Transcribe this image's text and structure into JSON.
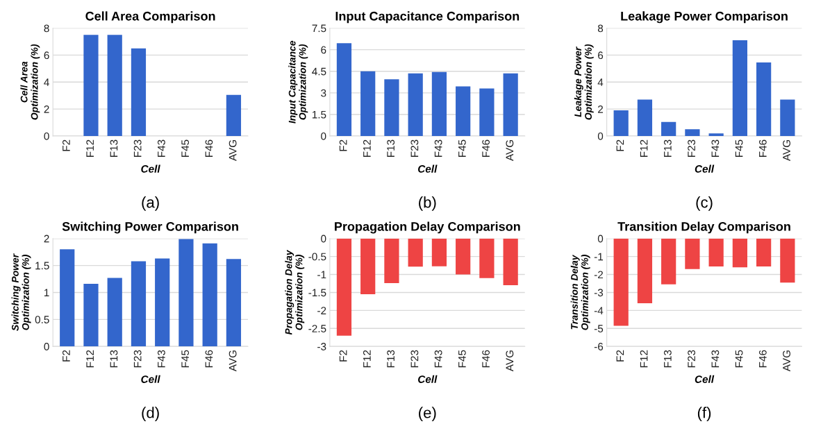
{
  "chart_data": [
    {
      "type": "bar",
      "title": "Cell Area Comparison",
      "xlabel": "Cell",
      "ylabel": "Cell Area\nOptimization (%)",
      "categories": [
        "F2",
        "F12",
        "F13",
        "F23",
        "F43",
        "F45",
        "F46",
        "AVG"
      ],
      "values": [
        0,
        7.5,
        7.5,
        6.5,
        0,
        0,
        0,
        3.05
      ],
      "color": "#3366cc",
      "ylim": [
        0,
        8
      ],
      "yticks": [
        0,
        2,
        4,
        6,
        8
      ],
      "grid": "y",
      "annotations": [
        "(a)"
      ]
    },
    {
      "type": "bar",
      "title": "Input Capacitance Comparison",
      "xlabel": "Cell",
      "ylabel": "Input Capacitance\nOptimization (%)",
      "categories": [
        "F2",
        "F12",
        "F13",
        "F23",
        "F43",
        "F45",
        "F46",
        "AVG"
      ],
      "values": [
        6.45,
        4.5,
        3.95,
        4.35,
        4.45,
        3.45,
        3.3,
        4.35
      ],
      "color": "#3366cc",
      "ylim": [
        0,
        7.5
      ],
      "yticks": [
        0,
        1.5,
        3,
        4.5,
        6,
        7.5
      ],
      "grid": "y",
      "annotations": [
        "(b)"
      ]
    },
    {
      "type": "bar",
      "title": "Leakage Power Comparison",
      "xlabel": "Cell",
      "ylabel": "Leakage Power\nOptimization (%)",
      "categories": [
        "F2",
        "F12",
        "F13",
        "F23",
        "F43",
        "F45",
        "F46",
        "AVG"
      ],
      "values": [
        1.9,
        2.7,
        1.05,
        0.5,
        0.2,
        7.1,
        5.45,
        2.7
      ],
      "color": "#3366cc",
      "ylim": [
        0,
        8
      ],
      "yticks": [
        0,
        2,
        4,
        6,
        8
      ],
      "grid": "y",
      "annotations": [
        "(c)"
      ]
    },
    {
      "type": "bar",
      "title": "Switching Power Comparison",
      "xlabel": "Cell",
      "ylabel": "Switching Power\nOptimization (%)",
      "categories": [
        "F2",
        "F12",
        "F13",
        "F23",
        "F43",
        "F45",
        "F46",
        "AVG"
      ],
      "values": [
        1.8,
        1.16,
        1.27,
        1.58,
        1.63,
        1.99,
        1.91,
        1.62
      ],
      "color": "#3366cc",
      "ylim": [
        0,
        2
      ],
      "yticks": [
        0,
        0.5,
        1,
        1.5,
        2
      ],
      "grid": "y",
      "annotations": [
        "(d)"
      ]
    },
    {
      "type": "bar",
      "title": "Propagation Delay Comparison",
      "xlabel": "Cell",
      "ylabel": "Propagation Delay\nOptimization (%)",
      "categories": [
        "F2",
        "F12",
        "F13",
        "F23",
        "F43",
        "F45",
        "F46",
        "AVG"
      ],
      "values": [
        -2.7,
        -1.55,
        -1.24,
        -0.78,
        -0.77,
        -1.0,
        -1.1,
        -1.3
      ],
      "color": "#ee4444",
      "ylim": [
        -3,
        0
      ],
      "yticks": [
        -3,
        -2.5,
        -2,
        -1.5,
        -1,
        -0.5,
        0
      ],
      "grid": "y",
      "annotations": [
        "(e)"
      ]
    },
    {
      "type": "bar",
      "title": "Transition Delay Comparison",
      "xlabel": "Cell",
      "ylabel": "Transition Delay\nOptimization (%)",
      "categories": [
        "F2",
        "F12",
        "F13",
        "F23",
        "F43",
        "F45",
        "F46",
        "AVG"
      ],
      "values": [
        -4.85,
        -3.6,
        -2.55,
        -1.7,
        -1.55,
        -1.6,
        -1.55,
        -2.45
      ],
      "color": "#ee4444",
      "ylim": [
        -6,
        0
      ],
      "yticks": [
        -6,
        -5,
        -4,
        -3,
        -2,
        -1,
        0
      ],
      "grid": "y",
      "annotations": [
        "(f)"
      ]
    }
  ]
}
